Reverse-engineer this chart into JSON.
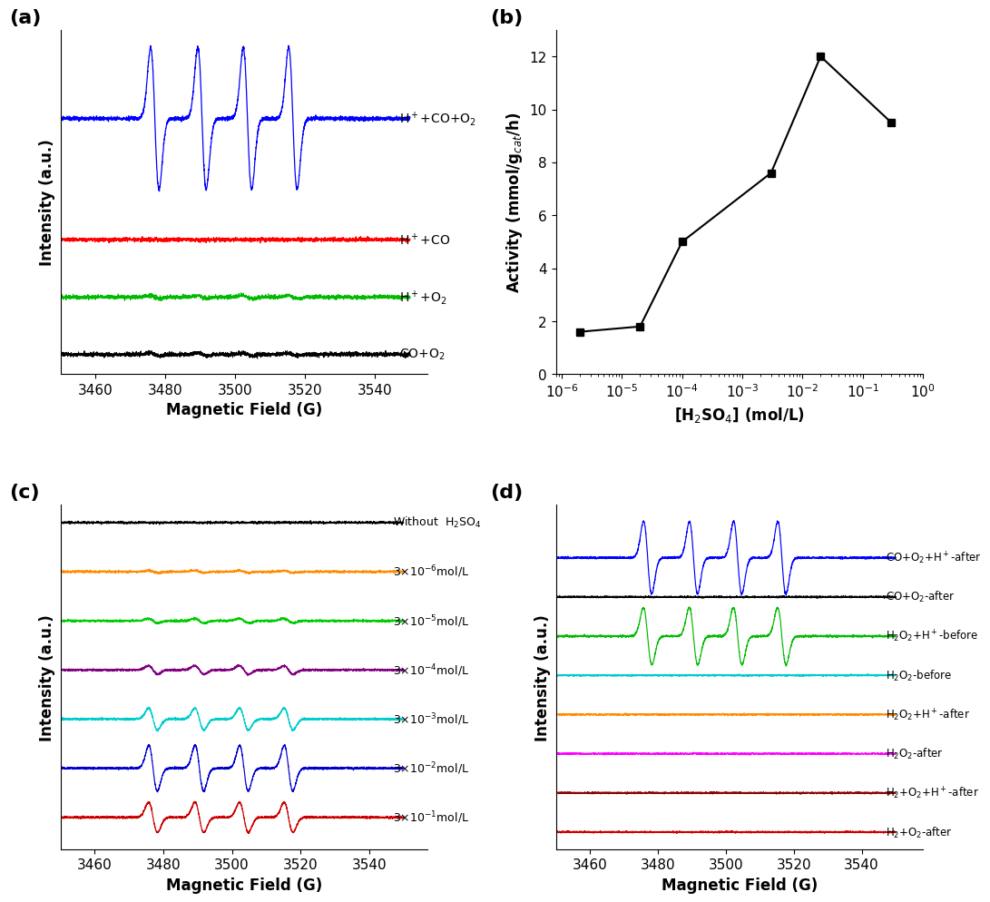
{
  "fig_width": 10.8,
  "fig_height": 10.03,
  "panel_labels": [
    "(a)",
    "(b)",
    "(c)",
    "(d)"
  ],
  "panel_label_fontsize": 16,
  "panel_label_weight": "bold",
  "xlabel_magnetic": "Magnetic Field (G)",
  "ylabel_intensity": "Intensity (a.u.)",
  "xticks_magnetic": [
    3460,
    3480,
    3500,
    3520,
    3540
  ],
  "panel_a_labels": [
    "H$^+$+CO+O$_2$",
    "H$^+$+CO",
    "H$^+$+O$_2$",
    "CO+O$_2$"
  ],
  "panel_a_colors": [
    "#0000FF",
    "#FF0000",
    "#00BB00",
    "#000000"
  ],
  "panel_b_x": [
    2e-06,
    2e-05,
    0.0001,
    0.003,
    0.02,
    0.3
  ],
  "panel_b_y": [
    1.6,
    1.8,
    5.0,
    7.6,
    12.0,
    9.5
  ],
  "panel_b_xlabel": "[H$_2$SO$_4$] (mol/L)",
  "panel_b_ylabel": "Activity (mmol/g$_{cat}$/h)",
  "panel_b_ylim": [
    0,
    13
  ],
  "panel_b_yticks": [
    0,
    2,
    4,
    6,
    8,
    10,
    12
  ],
  "panel_c_labels": [
    "Without  H$_2$SO$_4$",
    "3×10$^{-6}$mol/L",
    "3×10$^{-5}$mol/L",
    "3×10$^{-4}$mol/L",
    "3×10$^{-3}$mol/L",
    "3×10$^{-2}$mol/L",
    "3×10$^{-1}$mol/L"
  ],
  "panel_c_colors": [
    "#000000",
    "#FF8C00",
    "#00CC00",
    "#800080",
    "#00CCCC",
    "#0000CC",
    "#CC0000"
  ],
  "panel_c_amplitudes": [
    0.0,
    0.06,
    0.12,
    0.22,
    0.55,
    1.1,
    0.75
  ],
  "panel_d_labels": [
    "CO+O$_2$+H$^+$-after",
    "CO+O$_2$-after",
    "H$_2$O$_2$+H$^+$-before",
    "H$_2$O$_2$-before",
    "H$_2$O$_2$+H$^+$-after",
    "H$_2$O$_2$-after",
    "H$_2$+O$_2$+H$^+$-after",
    "H$_2$+O$_2$-after"
  ],
  "panel_d_colors": [
    "#0000FF",
    "#000000",
    "#00BB00",
    "#00CCCC",
    "#FF8C00",
    "#FF00FF",
    "#8B0000",
    "#CC0000"
  ],
  "panel_d_amplitudes": [
    2.2,
    0.0,
    1.8,
    0.0,
    0.0,
    0.0,
    0.0,
    0.0
  ],
  "axis_fontsize": 12,
  "tick_fontsize": 11,
  "label_fontsize": 10
}
